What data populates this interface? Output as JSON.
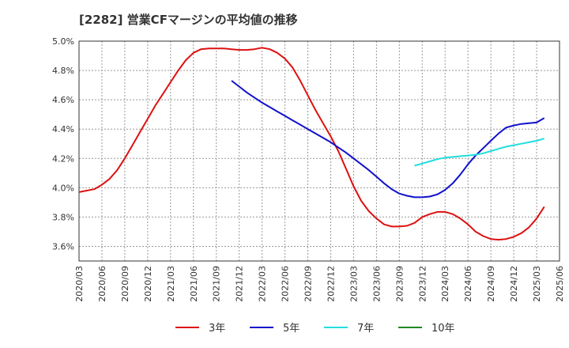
{
  "chart_data": {
    "type": "line",
    "title": "[2282]  営業CFマージンの平均値の推移",
    "ylim": [
      3.5,
      5.0
    ],
    "yticks": [
      "3.6%",
      "3.8%",
      "4.0%",
      "4.2%",
      "4.4%",
      "4.6%",
      "4.8%",
      "5.0%"
    ],
    "ytick_values": [
      3.6,
      3.8,
      4.0,
      4.2,
      4.4,
      4.6,
      4.8,
      5.0
    ],
    "xticks": [
      "2020/03",
      "2020/06",
      "2020/09",
      "2020/12",
      "2021/03",
      "2021/06",
      "2021/09",
      "2021/12",
      "2022/03",
      "2022/06",
      "2022/09",
      "2022/12",
      "2023/03",
      "2023/06",
      "2023/09",
      "2023/12",
      "2024/03",
      "2024/06",
      "2024/09",
      "2024/12",
      "2025/03",
      "2025/06"
    ],
    "grid": true,
    "legend_position": "bottom",
    "series": [
      {
        "name": "3年",
        "color": "#dd1111",
        "points": [
          [
            "2020/03",
            3.97
          ],
          [
            "2020/04",
            3.98
          ],
          [
            "2020/05",
            3.99
          ],
          [
            "2020/06",
            4.02
          ],
          [
            "2020/07",
            4.06
          ],
          [
            "2020/08",
            4.12
          ],
          [
            "2020/09",
            4.2
          ],
          [
            "2020/10",
            4.29
          ],
          [
            "2020/11",
            4.38
          ],
          [
            "2020/12",
            4.47
          ],
          [
            "2021/01",
            4.56
          ],
          [
            "2021/02",
            4.64
          ],
          [
            "2021/03",
            4.72
          ],
          [
            "2021/04",
            4.8
          ],
          [
            "2021/05",
            4.87
          ],
          [
            "2021/06",
            4.92
          ],
          [
            "2021/07",
            4.945
          ],
          [
            "2021/08",
            4.95
          ],
          [
            "2021/09",
            4.95
          ],
          [
            "2021/10",
            4.95
          ],
          [
            "2021/11",
            4.945
          ],
          [
            "2021/12",
            4.94
          ],
          [
            "2022/01",
            4.94
          ],
          [
            "2022/02",
            4.945
          ],
          [
            "2022/03",
            4.955
          ],
          [
            "2022/04",
            4.945
          ],
          [
            "2022/05",
            4.92
          ],
          [
            "2022/06",
            4.88
          ],
          [
            "2022/07",
            4.82
          ],
          [
            "2022/08",
            4.73
          ],
          [
            "2022/09",
            4.63
          ],
          [
            "2022/10",
            4.53
          ],
          [
            "2022/11",
            4.44
          ],
          [
            "2022/12",
            4.35
          ],
          [
            "2023/01",
            4.25
          ],
          [
            "2023/02",
            4.13
          ],
          [
            "2023/03",
            4.01
          ],
          [
            "2023/04",
            3.91
          ],
          [
            "2023/05",
            3.84
          ],
          [
            "2023/06",
            3.79
          ],
          [
            "2023/07",
            3.75
          ],
          [
            "2023/08",
            3.735
          ],
          [
            "2023/09",
            3.735
          ],
          [
            "2023/10",
            3.74
          ],
          [
            "2023/11",
            3.76
          ],
          [
            "2023/12",
            3.8
          ],
          [
            "2024/01",
            3.82
          ],
          [
            "2024/02",
            3.835
          ],
          [
            "2024/03",
            3.835
          ],
          [
            "2024/04",
            3.82
          ],
          [
            "2024/05",
            3.79
          ],
          [
            "2024/06",
            3.75
          ],
          [
            "2024/07",
            3.7
          ],
          [
            "2024/08",
            3.67
          ],
          [
            "2024/09",
            3.65
          ],
          [
            "2024/10",
            3.645
          ],
          [
            "2024/11",
            3.65
          ],
          [
            "2024/12",
            3.665
          ],
          [
            "2025/01",
            3.69
          ],
          [
            "2025/02",
            3.73
          ],
          [
            "2025/03",
            3.79
          ],
          [
            "2025/04",
            3.87
          ]
        ]
      },
      {
        "name": "5年",
        "color": "#1111cc",
        "points": [
          [
            "2021/11",
            4.73
          ],
          [
            "2021/12",
            4.69
          ],
          [
            "2022/01",
            4.65
          ],
          [
            "2022/02",
            4.615
          ],
          [
            "2022/03",
            4.58
          ],
          [
            "2022/04",
            4.55
          ],
          [
            "2022/05",
            4.52
          ],
          [
            "2022/06",
            4.49
          ],
          [
            "2022/07",
            4.46
          ],
          [
            "2022/08",
            4.43
          ],
          [
            "2022/09",
            4.4
          ],
          [
            "2022/10",
            4.37
          ],
          [
            "2022/11",
            4.34
          ],
          [
            "2022/12",
            4.31
          ],
          [
            "2023/01",
            4.275
          ],
          [
            "2023/02",
            4.24
          ],
          [
            "2023/03",
            4.2
          ],
          [
            "2023/04",
            4.16
          ],
          [
            "2023/05",
            4.12
          ],
          [
            "2023/06",
            4.075
          ],
          [
            "2023/07",
            4.03
          ],
          [
            "2023/08",
            3.99
          ],
          [
            "2023/09",
            3.96
          ],
          [
            "2023/10",
            3.945
          ],
          [
            "2023/11",
            3.935
          ],
          [
            "2023/12",
            3.935
          ],
          [
            "2024/01",
            3.94
          ],
          [
            "2024/02",
            3.955
          ],
          [
            "2024/03",
            3.985
          ],
          [
            "2024/04",
            4.03
          ],
          [
            "2024/05",
            4.09
          ],
          [
            "2024/06",
            4.16
          ],
          [
            "2024/07",
            4.22
          ],
          [
            "2024/08",
            4.27
          ],
          [
            "2024/09",
            4.32
          ],
          [
            "2024/10",
            4.37
          ],
          [
            "2024/11",
            4.41
          ],
          [
            "2024/12",
            4.425
          ],
          [
            "2025/01",
            4.435
          ],
          [
            "2025/02",
            4.44
          ],
          [
            "2025/03",
            4.445
          ],
          [
            "2025/04",
            4.475
          ]
        ]
      },
      {
        "name": "7年",
        "color": "#22dddd",
        "points": [
          [
            "2023/11",
            4.15
          ],
          [
            "2023/12",
            4.165
          ],
          [
            "2024/01",
            4.18
          ],
          [
            "2024/02",
            4.195
          ],
          [
            "2024/03",
            4.205
          ],
          [
            "2024/04",
            4.21
          ],
          [
            "2024/05",
            4.215
          ],
          [
            "2024/06",
            4.22
          ],
          [
            "2024/07",
            4.225
          ],
          [
            "2024/08",
            4.235
          ],
          [
            "2024/09",
            4.25
          ],
          [
            "2024/10",
            4.265
          ],
          [
            "2024/11",
            4.28
          ],
          [
            "2024/12",
            4.29
          ],
          [
            "2025/01",
            4.3
          ],
          [
            "2025/02",
            4.31
          ],
          [
            "2025/03",
            4.32
          ],
          [
            "2025/04",
            4.335
          ]
        ]
      },
      {
        "name": "10年",
        "color": "#228822",
        "points": []
      }
    ]
  }
}
